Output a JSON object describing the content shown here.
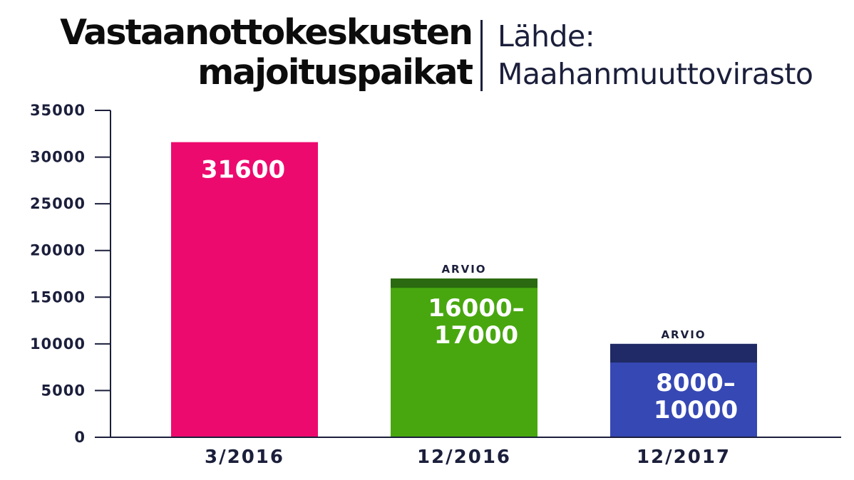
{
  "header": {
    "title_line1": "Vastaanottokeskusten",
    "title_line2": "majoituspaikat",
    "source_line1": "Lähde:",
    "source_line2": "Maahanmuuttovirasto"
  },
  "colors": {
    "bar_3_2016": "#ed0a6e",
    "bar_12_2016": "#48a70f",
    "bar_12_2016_range": "#2b6a10",
    "bar_12_2017": "#3648b4",
    "bar_12_2017_range": "#1f2a66",
    "axis": "#1b1f3b"
  },
  "chart_data": {
    "type": "bar",
    "categories": [
      "3/2016",
      "12/2016",
      "12/2017"
    ],
    "values": [
      31600,
      17000,
      10000
    ],
    "ranges": [
      null,
      [
        16000,
        17000
      ],
      [
        8000,
        10000
      ]
    ],
    "value_labels": [
      [
        "31600"
      ],
      [
        "16000–",
        "17000"
      ],
      [
        "8000–",
        "10000"
      ]
    ],
    "annotations": [
      "",
      "ARVIO",
      "ARVIO"
    ],
    "y_ticks": [
      "0",
      "5000",
      "10000",
      "15000",
      "20000",
      "25000",
      "30000",
      "35000"
    ],
    "ylim": [
      0,
      35000
    ],
    "grid": false
  }
}
